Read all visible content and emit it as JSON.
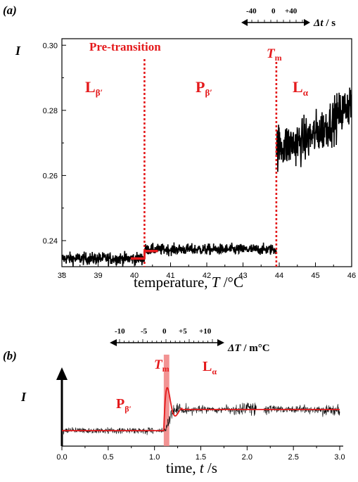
{
  "chart_data": [
    {
      "type": "line",
      "panel_label": "(a)",
      "ylabel": "I",
      "xlabel_prefix": "temperature, ",
      "xlabel_var": "T",
      "xlabel_unit": " /°C",
      "xlim": [
        38,
        46
      ],
      "ylim": [
        0.232,
        0.302
      ],
      "x_ticks": [
        "38",
        "39",
        "40",
        "41",
        "42",
        "43",
        "44",
        "45",
        "46"
      ],
      "y_ticks": [
        "0.24",
        "0.26",
        "0.28",
        "0.30"
      ],
      "scale_bar": {
        "labels": [
          "-40",
          "0",
          "+40"
        ],
        "symbol": "Δt",
        "unit": " / s"
      },
      "annotations": {
        "pretransition": "Pre-transition",
        "tm": "T",
        "tm_sub": "m",
        "phase1": "L",
        "phase1_sub": "β′",
        "phase2": "P",
        "phase2_sub": "β′",
        "phase3": "L",
        "phase3_sub": "α"
      },
      "pretransition_T": 40.28,
      "tm_T": 43.92,
      "series": [
        {
          "segment": [
            38.0,
            40.28
          ],
          "mean": 0.2345,
          "noise": 0.0018
        },
        {
          "segment": [
            40.28,
            43.92
          ],
          "mean": 0.2373,
          "noise": 0.0016
        },
        {
          "segment": [
            43.92,
            46.0
          ],
          "mean_start": 0.269,
          "mean_end": 0.283,
          "noise": 0.0065
        }
      ],
      "fit_steps": [
        {
          "x": [
            39.9,
            40.28
          ],
          "y": 0.2345
        },
        {
          "x": [
            40.28,
            40.65
          ],
          "y": 0.2368
        }
      ]
    },
    {
      "type": "line",
      "panel_label": "(b)",
      "ylabel": "I",
      "xlabel_prefix": "time, ",
      "xlabel_var": "t",
      "xlabel_unit": " /s",
      "xlim": [
        0,
        3.0
      ],
      "x_ticks": [
        "0.0",
        "0.5",
        "1.0",
        "1.5",
        "2.0",
        "2.5",
        "3.0"
      ],
      "scale_bar": {
        "labels": [
          "-10",
          "-5",
          "0",
          "+5",
          "+10"
        ],
        "symbol": "ΔT",
        "unit": " / m°C"
      },
      "annotations": {
        "tm": "T",
        "tm_sub": "m",
        "phase1": "P",
        "phase1_sub": "β′",
        "phase2": "L",
        "phase2_sub": "α"
      },
      "tm_time": [
        1.1,
        1.16
      ],
      "baseline_before": 0.0,
      "baseline_after": 1.0,
      "colors": {
        "data": "#000000",
        "fit": "#e41a1c",
        "highlight": "#f08080"
      }
    }
  ]
}
